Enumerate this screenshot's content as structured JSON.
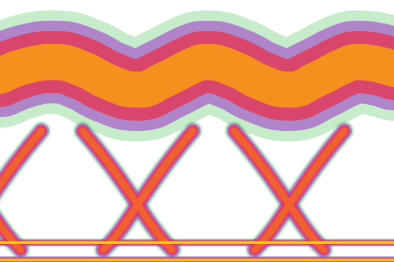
{
  "chart_data": {
    "type": "line",
    "xlim": [
      0,
      572
    ],
    "ylim": [
      0,
      380
    ],
    "tick_labels": false,
    "grid": false,
    "series": [
      {
        "color": "#f5901e",
        "line_style": "wide",
        "x": [
          0,
          40,
          80,
          120,
          160,
          200,
          240,
          280,
          300,
          340,
          380,
          420,
          460,
          500,
          520,
          572
        ],
        "values": [
          270,
          285,
          290,
          280,
          260,
          250,
          265,
          285,
          290,
          280,
          260,
          250,
          265,
          285,
          290,
          280
        ]
      },
      {
        "color": "#f06030",
        "line_style": "medium",
        "x": [
          -100,
          -60,
          -20,
          10,
          30
        ],
        "values": [
          190,
          140,
          83,
          40,
          18
        ]
      },
      {
        "color": "#f06030",
        "line_style": "medium",
        "x": [
          -70,
          -50,
          -20,
          20,
          60
        ],
        "values": [
          18,
          40,
          83,
          140,
          190
        ]
      },
      {
        "color": "#f06030",
        "line_style": "medium",
        "x": [
          120,
          160,
          200,
          230,
          250
        ],
        "values": [
          190,
          140,
          83,
          40,
          18
        ]
      },
      {
        "color": "#f06030",
        "line_style": "medium",
        "x": [
          150,
          170,
          200,
          240,
          280
        ],
        "values": [
          18,
          40,
          83,
          140,
          190
        ]
      },
      {
        "color": "#f06030",
        "line_style": "medium",
        "x": [
          340,
          380,
          420,
          450,
          470
        ],
        "values": [
          190,
          140,
          83,
          40,
          18
        ]
      },
      {
        "color": "#f06030",
        "line_style": "medium",
        "x": [
          370,
          390,
          420,
          460,
          500
        ],
        "values": [
          18,
          40,
          83,
          140,
          190
        ]
      },
      {
        "color": "#ffc020",
        "line_style": "thin",
        "x": [
          0,
          572
        ],
        "values": [
          28,
          28
        ]
      },
      {
        "color": "#ffc020",
        "line_style": "thin",
        "x": [
          0,
          572
        ],
        "values": [
          3,
          3
        ]
      }
    ]
  }
}
